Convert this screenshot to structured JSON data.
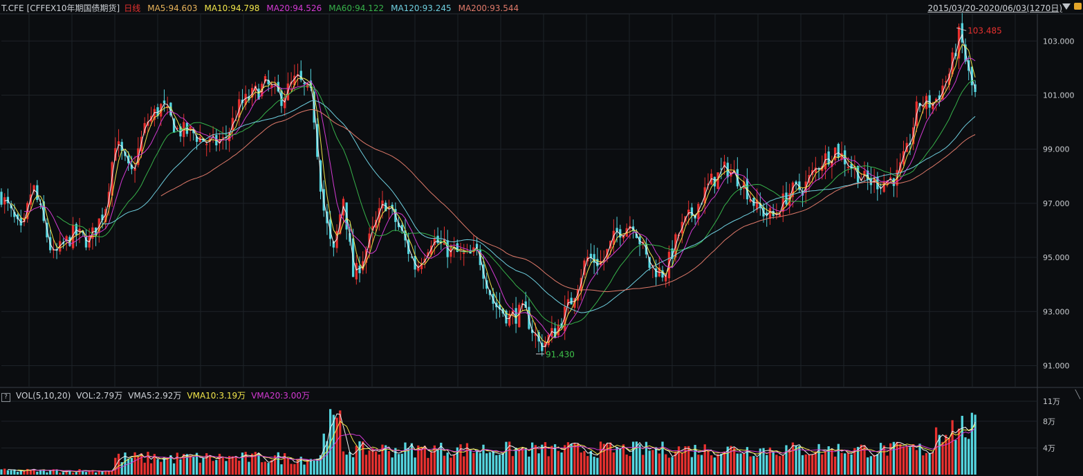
{
  "header": {
    "symbol": "T.CFE",
    "name": "[CFFEX10年期国债期货]",
    "period": "日线",
    "ma5": "MA5:94.603",
    "ma10": "MA10:94.798",
    "ma20": "MA20:94.526",
    "ma60": "MA60:94.122",
    "ma120": "MA120:93.245",
    "ma200": "MA200:93.544",
    "range": "2015/03/20-2020/06/03(1270日)"
  },
  "price_axis": {
    "ticks": [
      "103.000",
      "101.000",
      "99.000",
      "97.000",
      "95.000",
      "93.000",
      "91.000"
    ]
  },
  "annotations": {
    "high": "103.485",
    "low": "91.430"
  },
  "volume": {
    "help": "?",
    "label": "VOL(5,10,20)",
    "vol": "VOL:2.79万",
    "vma5": "VMA5:2.92万",
    "vma10": "VMA10:3.19万",
    "vma20": "VMA20:3.00万",
    "ticks": [
      "11万",
      "8万",
      "4万"
    ],
    "collapse": "╲"
  },
  "colors": {
    "background": "#0b0d10",
    "grid": "#1e2228",
    "up": "#e8312f",
    "down": "#55d6e0",
    "ma5": "#f0f0f0",
    "ma10": "#f2e64a",
    "ma20": "#d43ad4",
    "ma60": "#37b24a",
    "ma120": "#6fd0e0",
    "ma200": "#e07a6a",
    "period": "#e8312f",
    "high_label": "#e8312f",
    "low_label": "#3ec24a"
  },
  "chart_data": {
    "type": "candlestick",
    "x_range": [
      "2015/03/20",
      "2020/06/03"
    ],
    "y_range": [
      90.5,
      103.8
    ],
    "close_path": [
      [
        0,
        97.3
      ],
      [
        0.02,
        95.8
      ],
      [
        0.03,
        97.7
      ],
      [
        0.05,
        95.0
      ],
      [
        0.07,
        95.9
      ],
      [
        0.085,
        95.6
      ],
      [
        0.1,
        96.8
      ],
      [
        0.11,
        99.3
      ],
      [
        0.125,
        98.0
      ],
      [
        0.14,
        100.0
      ],
      [
        0.155,
        100.6
      ],
      [
        0.17,
        99.7
      ],
      [
        0.185,
        99.6
      ],
      [
        0.2,
        99.2
      ],
      [
        0.215,
        99.3
      ],
      [
        0.23,
        100.6
      ],
      [
        0.255,
        101.4
      ],
      [
        0.27,
        100.9
      ],
      [
        0.285,
        101.6
      ],
      [
        0.3,
        100.9
      ],
      [
        0.31,
        97.0
      ],
      [
        0.32,
        95.0
      ],
      [
        0.33,
        97.3
      ],
      [
        0.34,
        94.2
      ],
      [
        0.355,
        95.6
      ],
      [
        0.37,
        97.1
      ],
      [
        0.385,
        96.0
      ],
      [
        0.4,
        94.6
      ],
      [
        0.415,
        95.7
      ],
      [
        0.43,
        95.3
      ],
      [
        0.45,
        95.0
      ],
      [
        0.46,
        95.2
      ],
      [
        0.475,
        93.3
      ],
      [
        0.49,
        92.8
      ],
      [
        0.505,
        93.0
      ],
      [
        0.52,
        91.7
      ],
      [
        0.535,
        92.3
      ],
      [
        0.55,
        93.4
      ],
      [
        0.565,
        95.0
      ],
      [
        0.58,
        94.8
      ],
      [
        0.595,
        96.0
      ],
      [
        0.61,
        96.3
      ],
      [
        0.625,
        94.7
      ],
      [
        0.64,
        94.4
      ],
      [
        0.655,
        96.0
      ],
      [
        0.67,
        96.8
      ],
      [
        0.685,
        97.8
      ],
      [
        0.7,
        98.3
      ],
      [
        0.715,
        97.8
      ],
      [
        0.73,
        96.8
      ],
      [
        0.745,
        96.5
      ],
      [
        0.76,
        97.4
      ],
      [
        0.775,
        97.6
      ],
      [
        0.79,
        98.5
      ],
      [
        0.805,
        99.0
      ],
      [
        0.82,
        98.4
      ],
      [
        0.835,
        97.8
      ],
      [
        0.85,
        97.8
      ],
      [
        0.865,
        98.0
      ],
      [
        0.875,
        99.0
      ],
      [
        0.885,
        100.7
      ],
      [
        0.9,
        100.7
      ],
      [
        0.915,
        101.8
      ],
      [
        0.925,
        103.3
      ],
      [
        0.935,
        101.5
      ],
      [
        0.94,
        101.0
      ]
    ],
    "high": {
      "value": 103.485,
      "x": 0.922
    },
    "low": {
      "value": 91.43,
      "x": 0.516
    },
    "volume_max": 110000
  }
}
